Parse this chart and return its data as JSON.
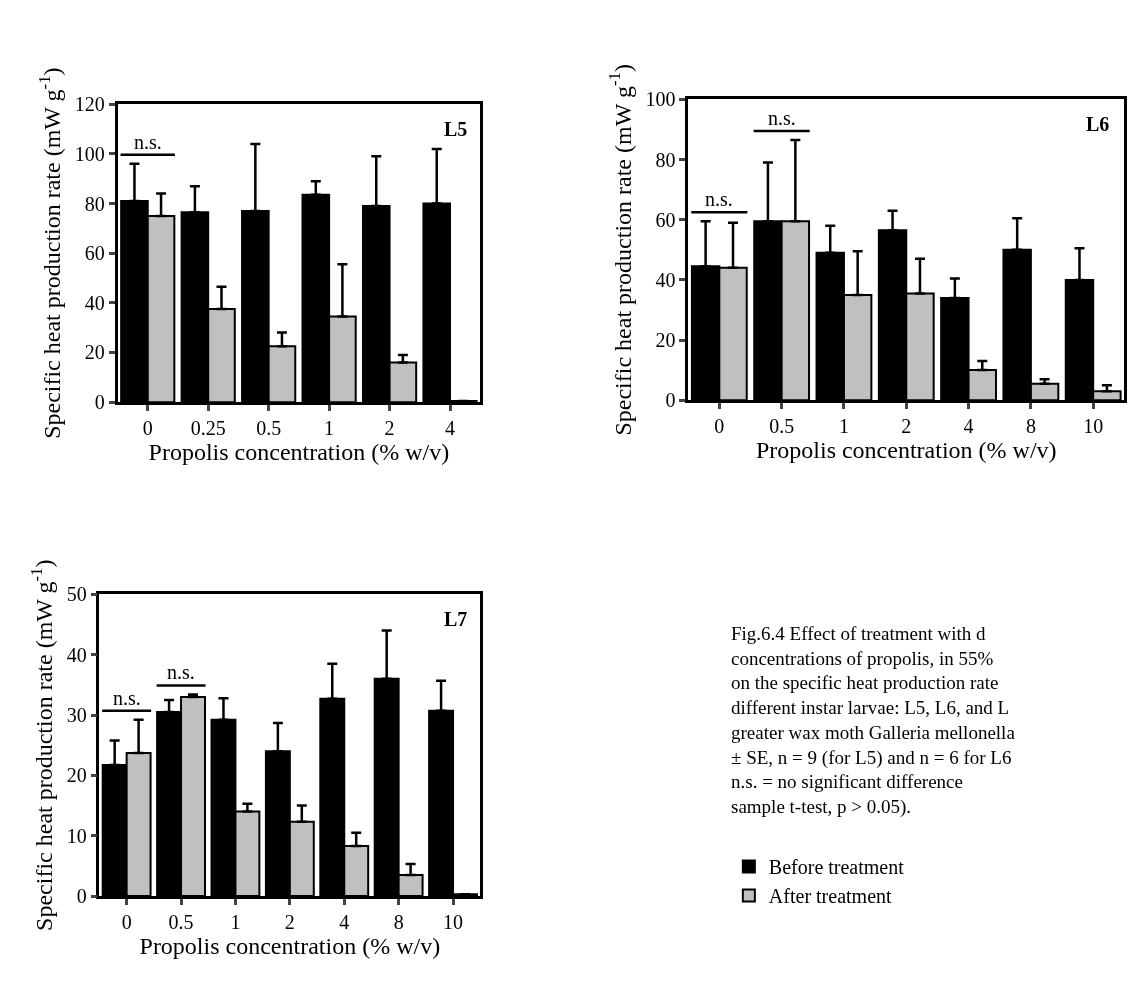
{
  "chart_data": [
    {
      "type": "bar",
      "xlabel": "Propolis concentration (% w/v)",
      "ylabel": "Specific heat production rate (mW g$^{-1}$)",
      "categories": [
        "0",
        "0.25",
        "0.5",
        "1",
        "2",
        "4"
      ],
      "ylim": [
        0,
        120
      ],
      "yticks": [
        0,
        20,
        40,
        60,
        80,
        100,
        120
      ],
      "legend": false,
      "series": [
        {
          "color": "#000000",
          "values": [
            81,
            76.5,
            77,
            83.5,
            79,
            80
          ],
          "errors": [
            [
              81,
              96
            ],
            [
              76.5,
              87
            ],
            [
              77,
              104
            ],
            [
              83.5,
              89
            ],
            [
              79,
              99
            ],
            [
              80,
              102
            ]
          ]
        },
        {
          "color": "#c0c0c0",
          "values": [
            75,
            37.5,
            22.5,
            34.5,
            16,
            0.5
          ],
          "errors": [
            [
              75,
              84
            ],
            [
              37.5,
              46.5
            ],
            [
              22.5,
              28
            ],
            [
              34.5,
              55.5
            ],
            [
              16,
              19
            ],
            null
          ]
        }
      ],
      "annotations": [
        "L5",
        "n.s."
      ]
    },
    {
      "type": "bar",
      "xlabel": "Propolis concentration (% w/v)",
      "ylabel": "Specific heat production rate (mW g$^{-1}$)",
      "categories": [
        "0",
        "0.5",
        "1",
        "2",
        "4",
        "8",
        "10"
      ],
      "ylim": [
        0,
        100
      ],
      "yticks": [
        0,
        20,
        40,
        60,
        80,
        100
      ],
      "legend": false,
      "series": [
        {
          "color": "#000000",
          "values": [
            44.5,
            59.5,
            49,
            56.5,
            34,
            50,
            40
          ],
          "errors": [
            [
              44.5,
              59.5
            ],
            [
              59.5,
              79
            ],
            [
              49,
              58
            ],
            [
              56.5,
              63
            ],
            [
              34,
              40.5
            ],
            [
              50,
              60.5
            ],
            [
              40,
              50.5
            ]
          ]
        },
        {
          "color": "#c0c0c0",
          "values": [
            44,
            59.5,
            35,
            35.5,
            10,
            5.5,
            3
          ],
          "errors": [
            [
              44,
              59
            ],
            [
              59.5,
              86.5
            ],
            [
              35,
              49.5
            ],
            [
              35.5,
              47
            ],
            [
              10,
              13
            ],
            [
              5.5,
              7
            ],
            [
              3,
              5
            ]
          ]
        }
      ],
      "annotations": [
        "L6",
        "n.s.",
        "n.s."
      ]
    },
    {
      "type": "bar",
      "xlabel": "Propolis concentration (% w/v)",
      "ylabel": "Specific heat production rate (mW g$^{-1}$)",
      "categories": [
        "0",
        "0.5",
        "1",
        "2",
        "4",
        "8",
        "10"
      ],
      "ylim": [
        0,
        50
      ],
      "yticks": [
        0,
        10,
        20,
        30,
        40,
        50
      ],
      "legend": "right",
      "series": [
        {
          "name": "Before treatment",
          "color": "#000000",
          "values": [
            21.7,
            30.5,
            29.2,
            24,
            32.7,
            36,
            30.7
          ],
          "errors": [
            [
              21.7,
              25.8
            ],
            [
              30.5,
              32.5
            ],
            [
              29.2,
              32.8
            ],
            [
              24,
              28.7
            ],
            [
              32.7,
              38.5
            ],
            [
              36,
              44
            ],
            [
              30.7,
              35.7
            ]
          ]
        },
        {
          "name": "After treatment",
          "color": "#c0c0c0",
          "values": [
            23.7,
            33,
            14,
            12.3,
            8.3,
            3.5,
            0.3
          ],
          "errors": [
            [
              23.7,
              29.2
            ],
            [
              33,
              33.4
            ],
            [
              14,
              15.3
            ],
            [
              12.3,
              15
            ],
            [
              8.3,
              10.5
            ],
            [
              3.5,
              5.3
            ],
            null
          ]
        }
      ],
      "annotations": [
        "L7",
        "n.s.",
        "n.s.",
        "Fig.6.4 Effect of treatment with d\nconcentrations of propolis, in 55%\non the specific heat production rate\ndifferent instar larvae: L5, L6, and L\ngreater wax moth Galleria mellonella\n± SE, n = 9 (for L5) and n = 6 for L6\nn.s. = no significant difference\nsample t-test, p > 0.05)."
      ]
    }
  ]
}
